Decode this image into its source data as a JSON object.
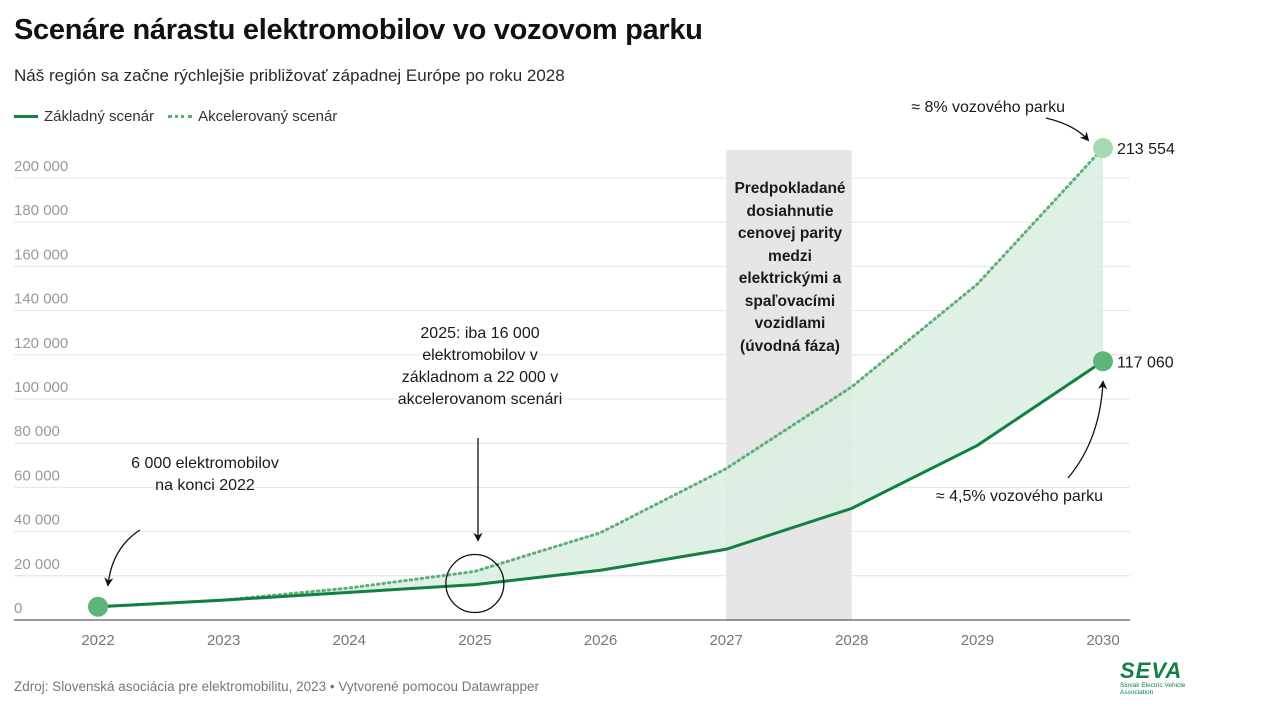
{
  "title": "Scenáre nárastu elektromobilov vo vozovom parku",
  "subtitle": "Náš región sa začne rýchlejšie približovať západnej Európe po roku 2028",
  "legend": {
    "base": "Základný scenár",
    "accelerated": "Akcelerovaný scenár"
  },
  "chart_data": {
    "type": "line",
    "x": [
      2022,
      2023,
      2024,
      2025,
      2026,
      2027,
      2028,
      2029,
      2030
    ],
    "series": [
      {
        "name": "Základný scenár",
        "values": [
          6000,
          9000,
          12500,
          16000,
          22500,
          32000,
          50500,
          79000,
          117060
        ]
      },
      {
        "name": "Akcelerovaný scenár",
        "values": [
          6000,
          9000,
          14500,
          22000,
          39500,
          68500,
          105500,
          152000,
          213554
        ]
      }
    ],
    "xlim": [
      2022,
      2030
    ],
    "ylim": [
      0,
      200000
    ],
    "yticks": [
      0,
      20000,
      40000,
      60000,
      80000,
      100000,
      120000,
      140000,
      160000,
      180000,
      200000
    ],
    "ytick_labels": [
      "0",
      "20 000",
      "40 000",
      "60 000",
      "80 000",
      "100 000",
      "120 000",
      "140 000",
      "160 000",
      "180 000",
      "200 000"
    ],
    "xtick_labels": [
      "2022",
      "2023",
      "2024",
      "2025",
      "2026",
      "2027",
      "2028",
      "2029",
      "2030"
    ],
    "highlight_range": [
      2027,
      2028
    ],
    "end_labels": {
      "base": "117 060",
      "accelerated": "213 554"
    },
    "colors": {
      "base": "#118042",
      "accelerated": "#5fae78",
      "fill": "#d9efe0",
      "band": "#e6e6e6",
      "grid": "#e4e4e4",
      "point": "#5fb47a",
      "point_light": "#a8d8b4"
    }
  },
  "annotations": {
    "start": "6 000 elektromobilov na konci 2022",
    "mid": "2025: iba 16 000 elektromobilov v základnom a 22 000 v akcelerovanom scenári",
    "parity": "Predpokladané dosiahnutie cenovej parity medzi elektrickými a spaľovacími vozidlami (úvodná fáza)",
    "acc_share": "≈ 8% vozového parku",
    "base_share": "≈ 4,5% vozového parku"
  },
  "footer": "Zdroj: Slovenská asociácia pre elektromobilitu, 2023 • Vytvorené pomocou Datawrapper",
  "logo": {
    "mark": "SEVA",
    "caption": "Slovak Electric Vehicle Association"
  }
}
